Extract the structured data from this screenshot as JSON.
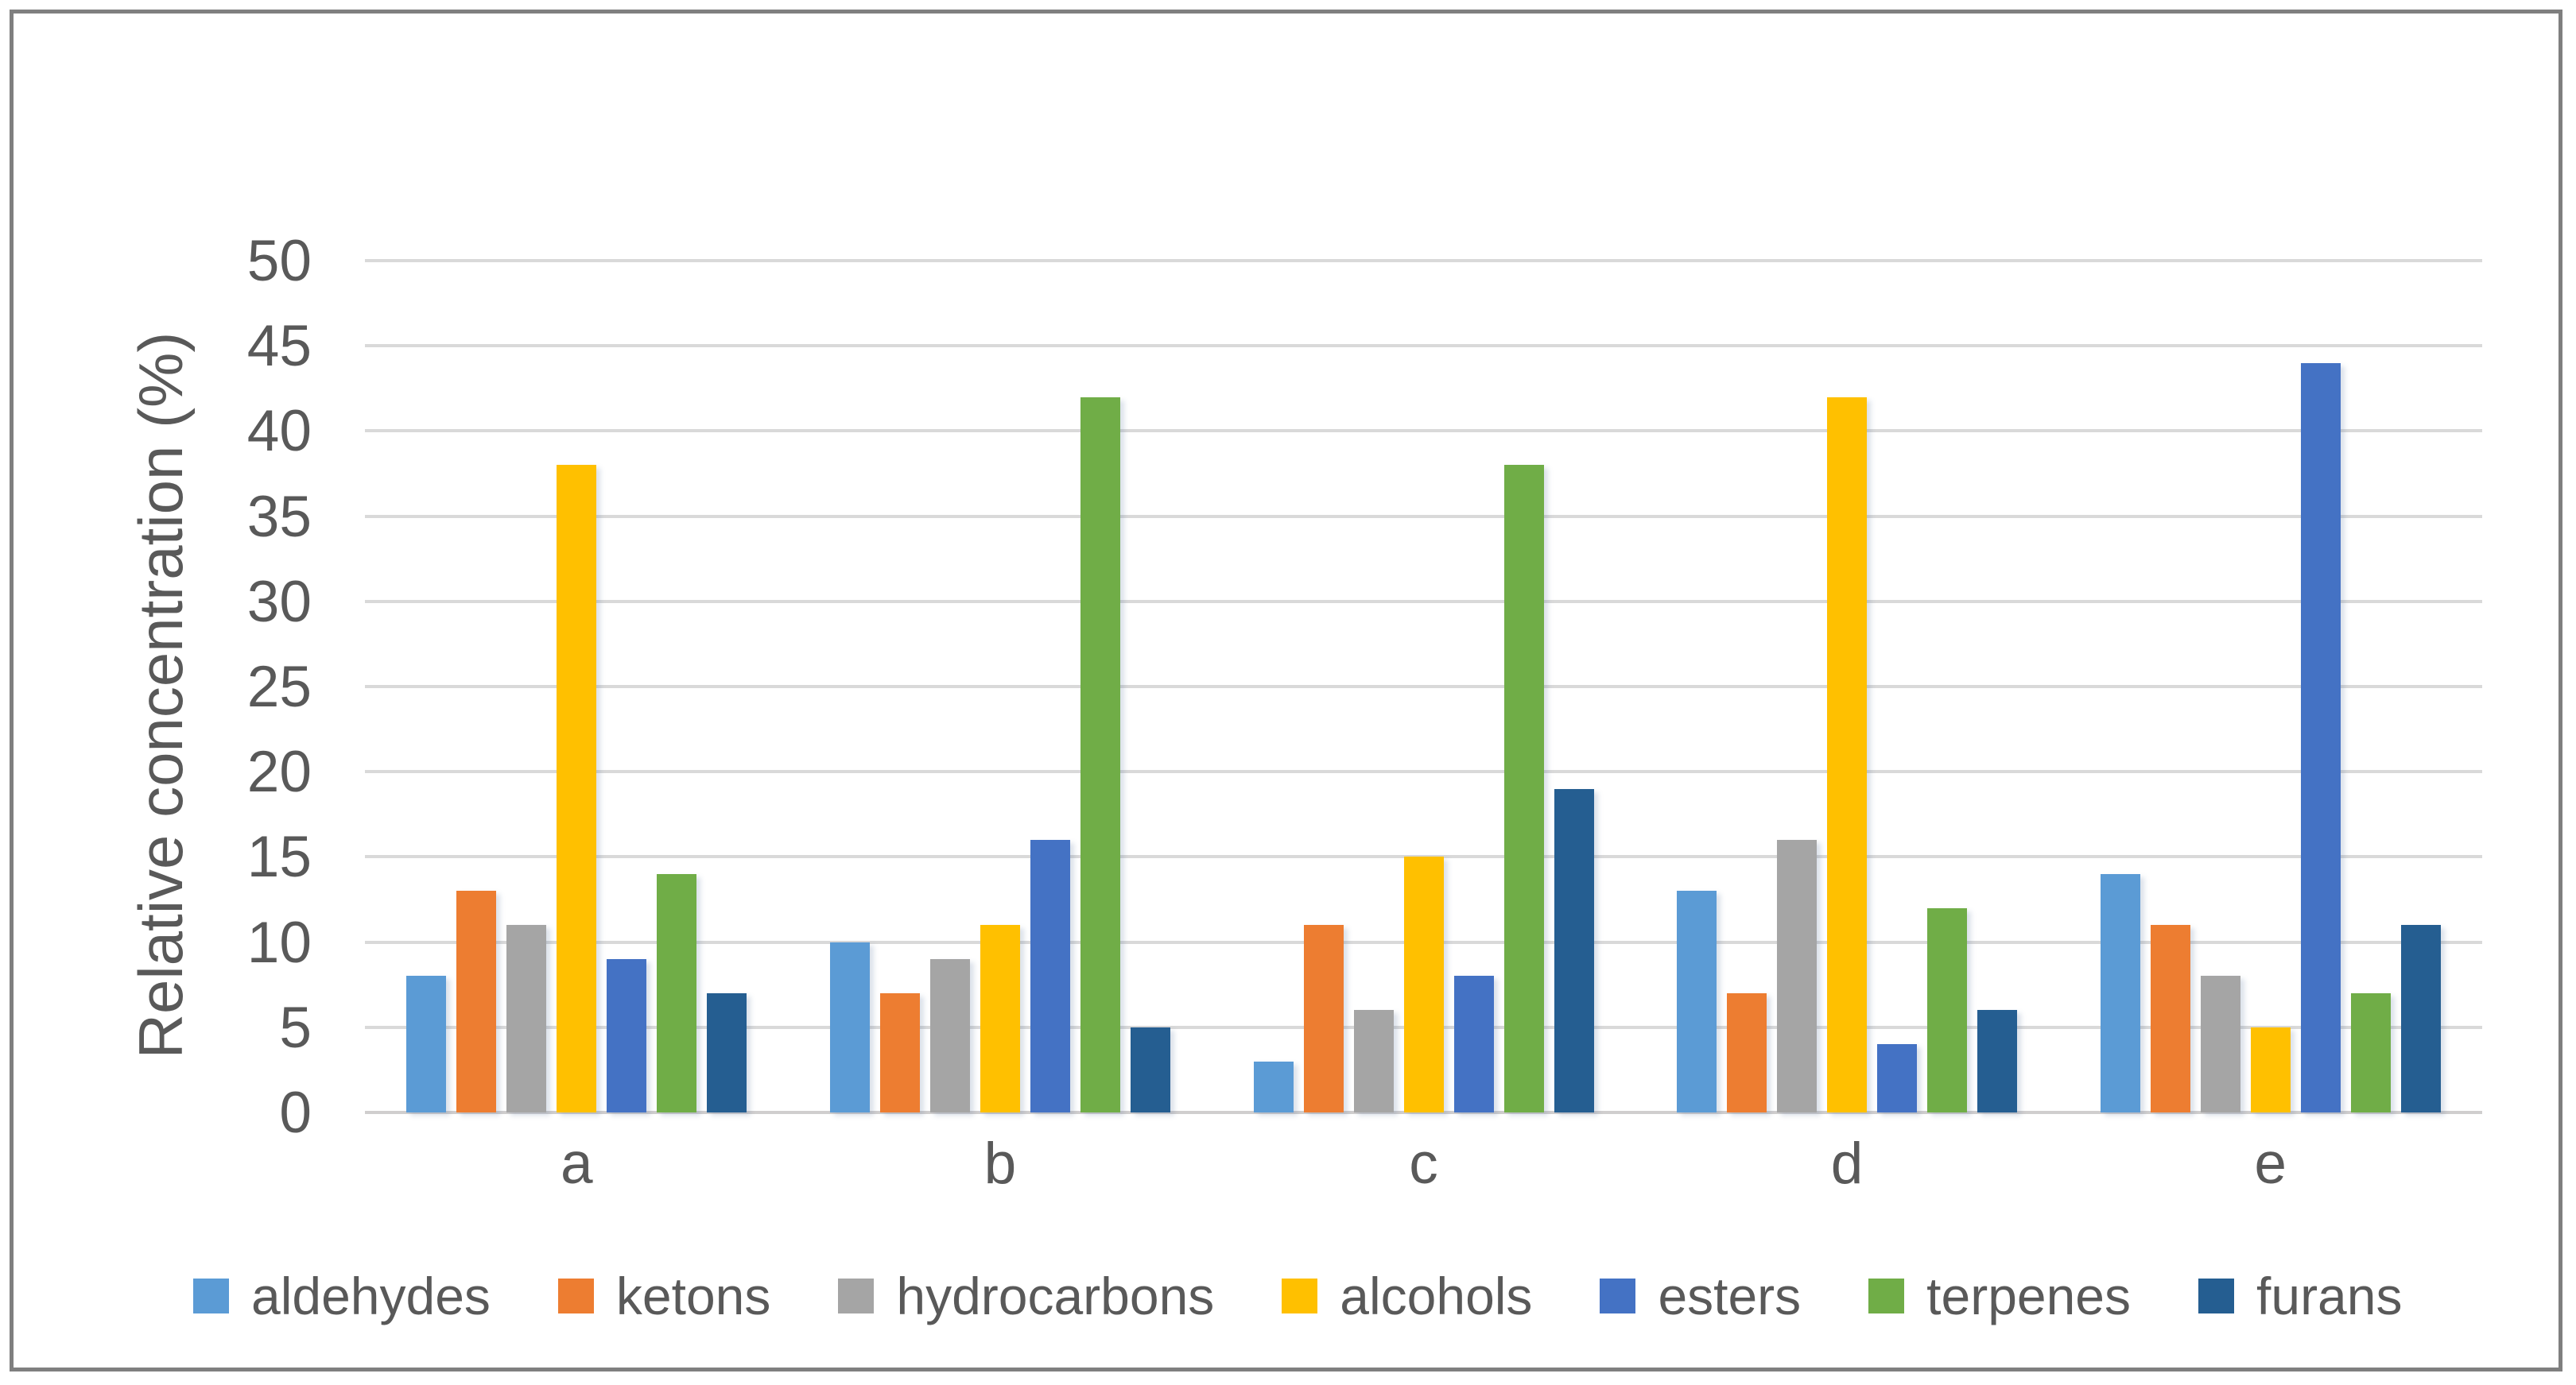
{
  "chart_data": {
    "type": "bar",
    "title": "",
    "xlabel": "",
    "ylabel": "Relative concentration (%)",
    "ylim": [
      0,
      50
    ],
    "ytick_step": 5,
    "yticks": [
      "0",
      "5",
      "10",
      "15",
      "20",
      "25",
      "30",
      "35",
      "40",
      "45",
      "50"
    ],
    "grid": true,
    "legend_position": "bottom",
    "categories": [
      "a",
      "b",
      "c",
      "d",
      "e"
    ],
    "series": [
      {
        "name": "aldehydes",
        "color": "#5B9BD5",
        "values": [
          8,
          10,
          3,
          13,
          14
        ]
      },
      {
        "name": "ketons",
        "color": "#ED7D31",
        "values": [
          13,
          7,
          11,
          7,
          11
        ]
      },
      {
        "name": "hydrocarbons",
        "color": "#A5A5A5",
        "values": [
          11,
          9,
          6,
          16,
          8
        ]
      },
      {
        "name": "alcohols",
        "color": "#FFC000",
        "values": [
          38,
          11,
          15,
          42,
          5
        ]
      },
      {
        "name": "esters",
        "color": "#4472C4",
        "values": [
          9,
          16,
          8,
          4,
          44
        ]
      },
      {
        "name": "terpenes",
        "color": "#70AD47",
        "values": [
          14,
          42,
          38,
          12,
          7
        ]
      },
      {
        "name": "furans",
        "color": "#255E91",
        "values": [
          7,
          5,
          19,
          6,
          11
        ]
      }
    ],
    "gridline_color": "#D9D9D9",
    "axis_text_color": "#595959",
    "frame_color": "#7F7F7F"
  }
}
